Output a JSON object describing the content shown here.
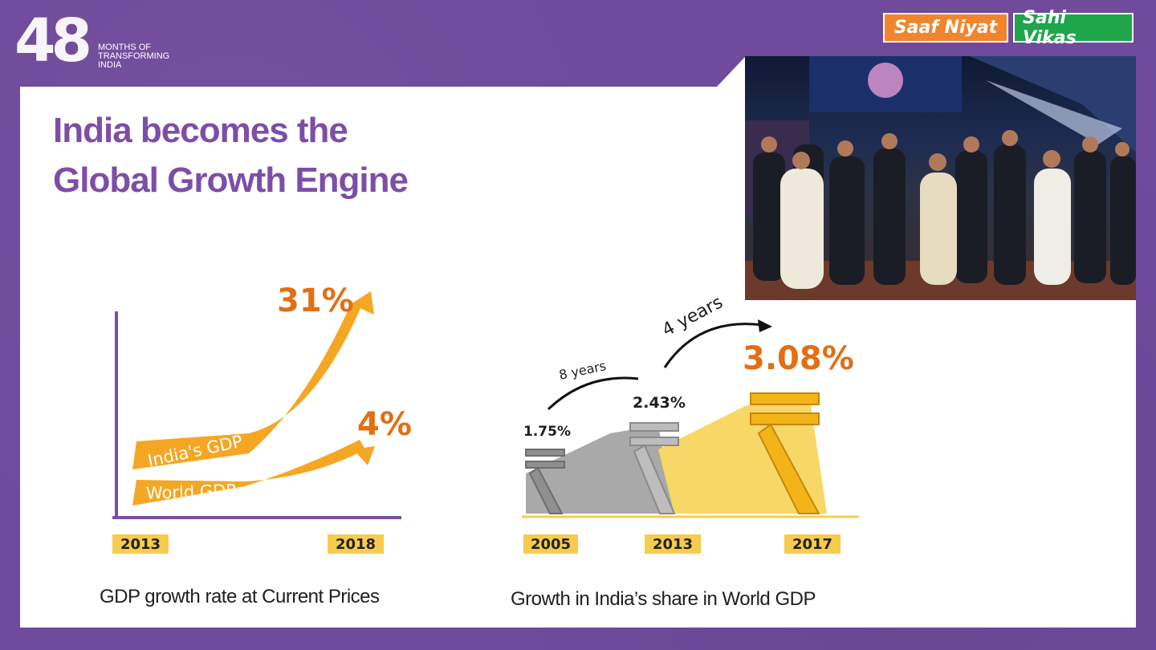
{
  "header": {
    "logo_number": "48",
    "logo_text": "MONTHS OF TRANSFORMING INDIA",
    "badge_left": "Saaf Niyat",
    "badge_right": "Sahi Vikas"
  },
  "title": {
    "line1": "India becomes the",
    "line2": "Global  Growth Engine"
  },
  "gdp_chart": {
    "india_label": "India's GDP",
    "world_label": "World GDP",
    "india_value": "31%",
    "world_value": "4%",
    "year_start": "2013",
    "year_end": "2018",
    "caption": "GDP growth rate at Current Prices"
  },
  "share_chart": {
    "values": [
      "1.75%",
      "2.43%",
      "3.08%"
    ],
    "years": [
      "2005",
      "2013",
      "2017"
    ],
    "gap1": "8 years",
    "gap2": "4 years",
    "caption": "Growth in India’s share in World GDP"
  },
  "chart_data": [
    {
      "type": "line",
      "categories": [
        "2013",
        "2018"
      ],
      "series": [
        {
          "name": "India's GDP",
          "values": [
            null,
            31
          ]
        },
        {
          "name": "World GDP",
          "values": [
            null,
            4
          ]
        }
      ],
      "title": "GDP growth rate at Current Prices"
    },
    {
      "type": "bar",
      "categories": [
        "2005",
        "2013",
        "2017"
      ],
      "values": [
        1.75,
        2.43,
        3.08
      ],
      "title": "Growth in India’s share in World GDP"
    }
  ],
  "colors": {
    "purple": "#704a9b",
    "title": "#7d4ea8",
    "orange": "#e26f14",
    "gold": "#f6cc4e",
    "badge_orange": "#f2852b",
    "badge_green": "#1fa54a"
  }
}
